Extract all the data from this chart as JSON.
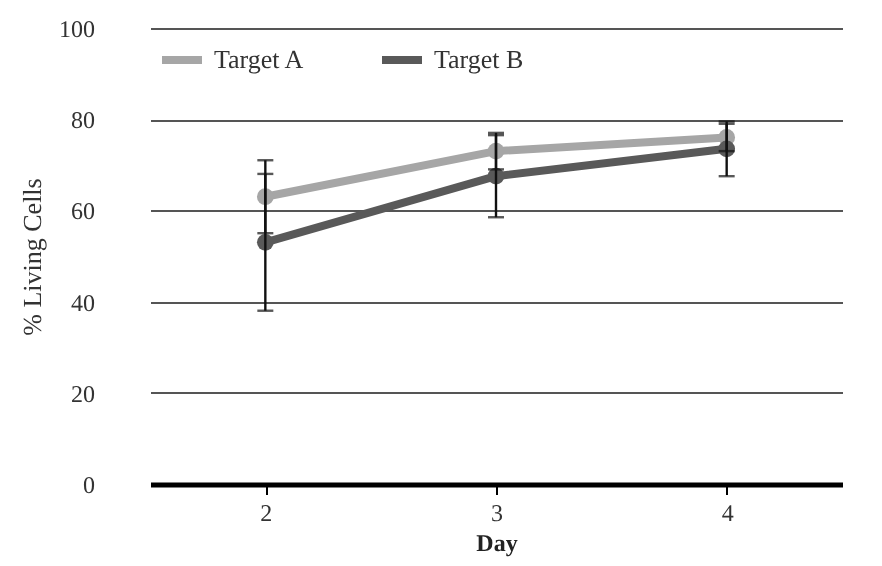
{
  "chart_data": {
    "type": "line",
    "xlabel": "Day",
    "ylabel": "% Living Cells",
    "categories": [
      "2",
      "3",
      "4"
    ],
    "series": [
      {
        "name": "Target A",
        "color": "#a6a6a6",
        "values": [
          63,
          73,
          76
        ],
        "errors": [
          8,
          4,
          3
        ]
      },
      {
        "name": "Target B",
        "color": "#595959",
        "values": [
          53,
          67.5,
          73.5
        ],
        "errors": [
          15,
          9,
          6
        ]
      }
    ],
    "ylim": [
      0,
      100
    ],
    "yticks": [
      0,
      20,
      40,
      60,
      80,
      100
    ],
    "grid": "y",
    "legend": "top left",
    "marker": "circle",
    "line_style": "solid"
  }
}
